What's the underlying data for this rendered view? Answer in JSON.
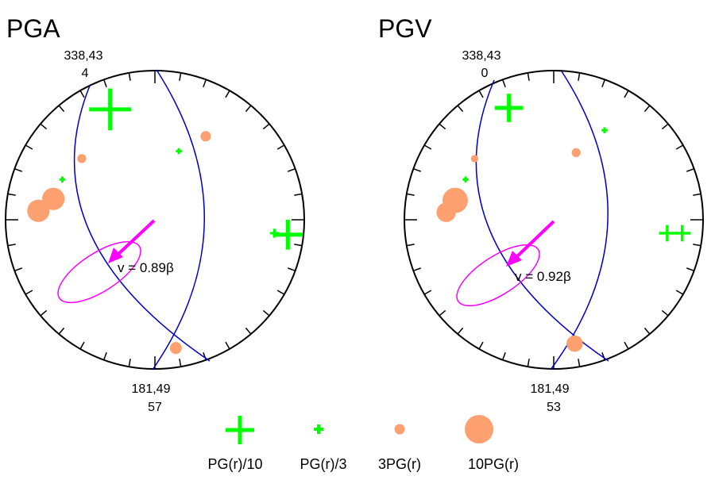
{
  "colors": {
    "outline": "#000000",
    "plane": "#0000cc",
    "ellipse": "#ff00ff",
    "arrow": "#ff00ff",
    "cross": "#00ff00",
    "dot": "#ffa070"
  },
  "legend": [
    {
      "label": "PG(r)/10",
      "symbol": "cross-large"
    },
    {
      "label": "PG(r)/3",
      "symbol": "cross-small"
    },
    {
      "label": "3PG(r)",
      "symbol": "dot-small"
    },
    {
      "label": "10PG(r)",
      "symbol": "dot-large"
    }
  ],
  "chart_data": [
    {
      "type": "stereonet",
      "title": "PGA",
      "top_label": "338,43",
      "top_value": "4",
      "bottom_label": "181,49",
      "bottom_value": "57",
      "velocity_label": "v = 0.89β",
      "symbols": [
        {
          "kind": "cross",
          "u": -0.3,
          "v": 0.74,
          "s": 0.14
        },
        {
          "kind": "cross",
          "u": 0.89,
          "v": -0.1,
          "s": 0.1
        },
        {
          "kind": "cross",
          "u": 0.8,
          "v": -0.09,
          "s": 0.03
        },
        {
          "kind": "cross",
          "u": -0.62,
          "v": 0.27,
          "s": 0.02
        },
        {
          "kind": "cross",
          "u": 0.16,
          "v": 0.46,
          "s": 0.02
        },
        {
          "kind": "dot",
          "u": -0.68,
          "v": 0.14,
          "r": 0.075
        },
        {
          "kind": "dot",
          "u": -0.78,
          "v": 0.06,
          "r": 0.075
        },
        {
          "kind": "dot",
          "u": 0.34,
          "v": 0.56,
          "r": 0.035
        },
        {
          "kind": "dot",
          "u": -0.49,
          "v": 0.41,
          "r": 0.03
        },
        {
          "kind": "dot",
          "u": 0.14,
          "v": -0.86,
          "r": 0.04
        }
      ]
    },
    {
      "type": "stereonet",
      "title": "PGV",
      "top_label": "338,43",
      "top_value": "0",
      "bottom_label": "181,49",
      "bottom_value": "53",
      "velocity_label": "v = 0.92β",
      "symbols": [
        {
          "kind": "cross",
          "u": -0.3,
          "v": 0.75,
          "s": 0.095
        },
        {
          "kind": "cross",
          "u": 0.86,
          "v": -0.09,
          "s": 0.055
        },
        {
          "kind": "cross",
          "u": 0.76,
          "v": -0.09,
          "s": 0.055
        },
        {
          "kind": "cross",
          "u": -0.59,
          "v": 0.27,
          "s": 0.02
        },
        {
          "kind": "cross",
          "u": 0.34,
          "v": 0.6,
          "s": 0.02
        },
        {
          "kind": "dot",
          "u": -0.66,
          "v": 0.13,
          "r": 0.085
        },
        {
          "kind": "dot",
          "u": -0.72,
          "v": 0.05,
          "r": 0.065
        },
        {
          "kind": "dot",
          "u": 0.15,
          "v": 0.45,
          "r": 0.03
        },
        {
          "kind": "dot",
          "u": -0.53,
          "v": 0.41,
          "r": 0.025
        },
        {
          "kind": "dot",
          "u": 0.14,
          "v": -0.83,
          "r": 0.055
        }
      ]
    }
  ]
}
